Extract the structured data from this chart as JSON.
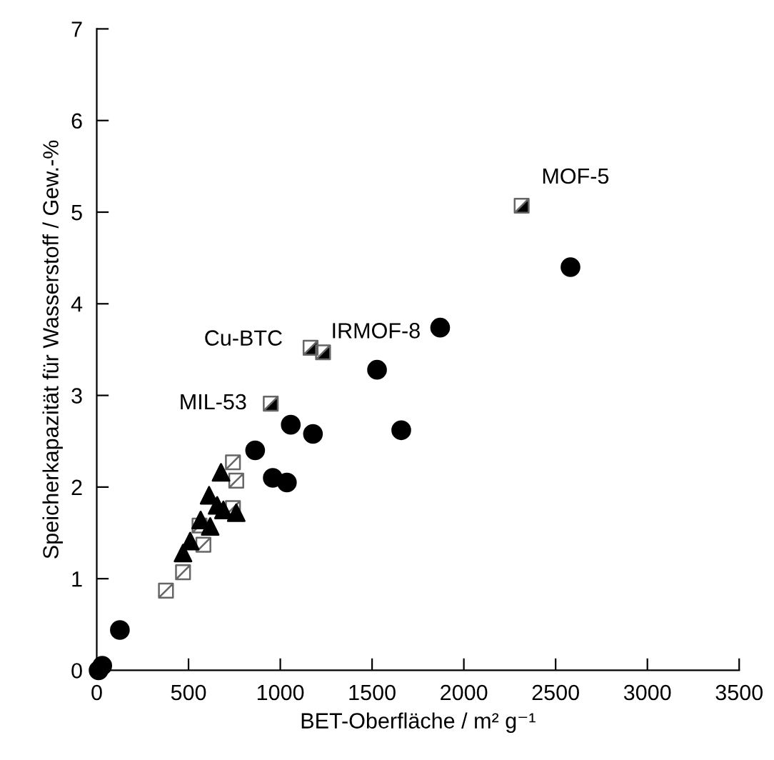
{
  "chart_data": {
    "type": "scatter",
    "xlabel": "BET-Oberfläche / m² g⁻¹",
    "ylabel": "Speicherkapazität für Wasserstoff / Gew.-%",
    "xlim": [
      0,
      3500
    ],
    "ylim": [
      0,
      7
    ],
    "xticks": [
      0,
      500,
      1000,
      1500,
      2000,
      2500,
      3000,
      3500
    ],
    "yticks": [
      0,
      1,
      2,
      3,
      4,
      5,
      6,
      7
    ],
    "grid": false,
    "legend": false,
    "series": [
      {
        "marker": "circle",
        "color": "#000000",
        "x": [
          10,
          30,
          126,
          863,
          959,
          1036,
          1057,
          1178,
          1527,
          1659,
          1871,
          2581
        ],
        "values": [
          0,
          0.05,
          0.44,
          2.4,
          2.1,
          2.05,
          2.68,
          2.58,
          3.28,
          2.62,
          3.74,
          4.4
        ]
      },
      {
        "marker": "triangle",
        "color": "#000000",
        "x": [
          470,
          509,
          566,
          618,
          612,
          677,
          656,
          690,
          760
        ],
        "values": [
          1.28,
          1.41,
          1.64,
          1.57,
          1.91,
          2.16,
          1.8,
          1.75,
          1.72
        ]
      },
      {
        "marker": "square",
        "color": "#ffffff",
        "x": [
          377,
          470,
          560,
          581,
          742,
          760,
          742
        ],
        "values": [
          0.87,
          1.07,
          1.58,
          1.37,
          2.27,
          2.07,
          1.77
        ]
      },
      {
        "marker": "square",
        "color": "#000000",
        "x": [
          948,
          1165,
          1233,
          2315
        ],
        "values": [
          2.91,
          3.52,
          3.47,
          5.07
        ]
      }
    ],
    "annotations": [
      {
        "text": "MIL-53",
        "x": 948,
        "y": 2.91
      },
      {
        "text": "Cu-BTC",
        "x": 1165,
        "y": 3.52
      },
      {
        "text": "IRMOF-8",
        "x": 1233,
        "y": 3.47
      },
      {
        "text": "MOF-5",
        "x": 2315,
        "y": 5.07
      }
    ]
  }
}
